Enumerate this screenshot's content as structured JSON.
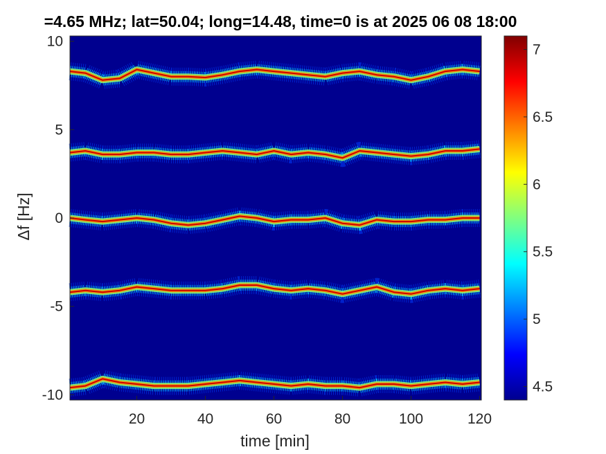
{
  "chart_data": {
    "type": "heatmap",
    "title": "=4.65 MHz;  lat=50.04; long=14.48, time=0 is at 2025 06 08 18:00",
    "xlabel": "time [min]",
    "ylabel": "Δf [Hz]",
    "xlim": [
      0.5,
      120.5
    ],
    "ylim": [
      -10.3,
      10.3
    ],
    "x_ticks": [
      20,
      40,
      60,
      80,
      100,
      120
    ],
    "x_tick_labels": [
      "20",
      "40",
      "60",
      "80",
      "100",
      "120"
    ],
    "y_ticks": [
      -10,
      -5,
      0,
      5,
      10
    ],
    "y_tick_labels": [
      "-10",
      "-5",
      "0",
      "5",
      "10"
    ],
    "colorbar": {
      "colormap": "jet",
      "clim": [
        4.4,
        7.1
      ],
      "ticks": [
        4.5,
        5,
        5.5,
        6,
        6.5,
        7
      ],
      "tick_labels": [
        "4.5",
        "5",
        "5.5",
        "6",
        "6.5",
        "7"
      ]
    },
    "background_level": 4.4,
    "background_color": "#00008f",
    "series": [
      {
        "x": [
          0,
          5,
          10,
          15,
          20,
          25,
          30,
          35,
          40,
          45,
          50,
          55,
          60,
          65,
          70,
          75,
          80,
          85,
          90,
          95,
          100,
          105,
          110,
          115,
          120
        ],
        "y": [
          8.3,
          8.2,
          7.8,
          7.9,
          8.4,
          8.2,
          8.0,
          8.0,
          7.95,
          8.1,
          8.3,
          8.4,
          8.3,
          8.2,
          8.1,
          8.0,
          8.2,
          8.3,
          8.1,
          8.0,
          7.8,
          8.0,
          8.3,
          8.4,
          8.3
        ]
      },
      {
        "x": [
          0,
          5,
          10,
          15,
          20,
          25,
          30,
          35,
          40,
          45,
          50,
          55,
          60,
          65,
          70,
          75,
          80,
          85,
          90,
          95,
          100,
          105,
          110,
          115,
          120
        ],
        "y": [
          3.7,
          3.8,
          3.6,
          3.6,
          3.7,
          3.7,
          3.6,
          3.6,
          3.7,
          3.8,
          3.7,
          3.6,
          3.8,
          3.6,
          3.7,
          3.6,
          3.4,
          3.8,
          3.7,
          3.6,
          3.5,
          3.6,
          3.8,
          3.8,
          3.9
        ]
      },
      {
        "x": [
          0,
          5,
          10,
          15,
          20,
          25,
          30,
          35,
          40,
          45,
          50,
          55,
          60,
          65,
          70,
          75,
          80,
          85,
          90,
          95,
          100,
          105,
          110,
          115,
          120
        ],
        "y": [
          0.0,
          -0.1,
          -0.2,
          -0.1,
          0.0,
          -0.1,
          -0.3,
          -0.4,
          -0.3,
          -0.1,
          0.1,
          0.0,
          -0.2,
          -0.1,
          -0.1,
          0.0,
          -0.3,
          -0.4,
          -0.1,
          -0.2,
          -0.2,
          -0.1,
          -0.1,
          0.0,
          0.0
        ]
      },
      {
        "x": [
          0,
          5,
          10,
          15,
          20,
          25,
          30,
          35,
          40,
          45,
          50,
          55,
          60,
          65,
          70,
          75,
          80,
          85,
          90,
          95,
          100,
          105,
          110,
          115,
          120
        ],
        "y": [
          -4.2,
          -4.1,
          -4.2,
          -4.1,
          -3.9,
          -4.0,
          -4.1,
          -4.1,
          -4.1,
          -4.0,
          -3.8,
          -3.8,
          -4.0,
          -4.1,
          -4.0,
          -4.1,
          -4.3,
          -4.1,
          -3.9,
          -4.2,
          -4.3,
          -4.1,
          -4.0,
          -4.1,
          -4.0
        ]
      },
      {
        "x": [
          0,
          5,
          10,
          15,
          20,
          25,
          30,
          35,
          40,
          45,
          50,
          55,
          60,
          65,
          70,
          75,
          80,
          85,
          90,
          95,
          100,
          105,
          110,
          115,
          120
        ],
        "y": [
          -9.6,
          -9.5,
          -9.1,
          -9.3,
          -9.4,
          -9.5,
          -9.5,
          -9.5,
          -9.4,
          -9.3,
          -9.2,
          -9.3,
          -9.4,
          -9.5,
          -9.4,
          -9.5,
          -9.5,
          -9.6,
          -9.4,
          -9.4,
          -9.5,
          -9.4,
          -9.3,
          -9.4,
          -9.3
        ]
      }
    ]
  }
}
